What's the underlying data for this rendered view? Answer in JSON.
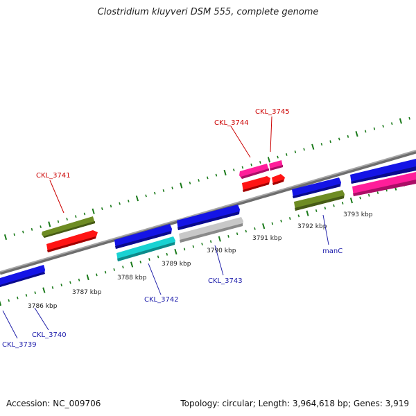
{
  "title": "Clostridium kluyveri DSM 555, complete genome",
  "footer": {
    "accession": "Accession: NC_009706",
    "summary": "Topology: circular; Length: 3,964,618 bp; Genes: 3,919"
  },
  "colors": {
    "backbone": "#8a8a8a",
    "tick": "#1a7a1a",
    "label_top": "#cc0000",
    "label_bottom": "#1a1aaa",
    "leader_top": "#cc0000",
    "leader_bottom": "#2222aa"
  },
  "kbp_labels": [
    "3786 kbp",
    "3787 kbp",
    "3788 kbp",
    "3789 kbp",
    "3790 kbp",
    "3791 kbp",
    "3792 kbp",
    "3793 kbp"
  ],
  "gene_labels_top": [
    "CKL_3741",
    "CKL_3744",
    "CKL_3745"
  ],
  "gene_labels_bottom": [
    "CKL_3739",
    "CKL_3740",
    "CKL_3742",
    "CKL_3743",
    "manC"
  ],
  "features": [
    {
      "id": "CKL_3739",
      "strand": "forward",
      "color": "#1414e6"
    },
    {
      "id": "CKL_3740",
      "strand": "forward",
      "color": "#1414e6"
    },
    {
      "id": "CKL_3741a",
      "strand": "reverse",
      "color": "#6e8c23"
    },
    {
      "id": "CKL_3741b",
      "strand": "reverse",
      "color": "#ff1414"
    },
    {
      "id": "CKL_3742a",
      "strand": "forward",
      "color": "#1414e6"
    },
    {
      "id": "CKL_3742b",
      "strand": "forward",
      "color": "#19d2d2"
    },
    {
      "id": "CKL_3743a",
      "strand": "forward",
      "color": "#1414e6"
    },
    {
      "id": "CKL_3743b",
      "strand": "forward",
      "color": "#c8c8c8"
    },
    {
      "id": "CKL_3744",
      "strand": "reverse",
      "color": "#ff1e9a"
    },
    {
      "id": "CKL_3744b",
      "strand": "reverse",
      "color": "#ff1414"
    },
    {
      "id": "CKL_3745",
      "strand": "reverse",
      "color": "#ff1e9a"
    },
    {
      "id": "manC_a",
      "strand": "forward",
      "color": "#1414e6"
    },
    {
      "id": "manC_b",
      "strand": "forward",
      "color": "#6e8c23"
    },
    {
      "id": "right_a",
      "strand": "forward",
      "color": "#1414e6"
    },
    {
      "id": "right_b",
      "strand": "forward",
      "color": "#ff1e9a"
    }
  ]
}
